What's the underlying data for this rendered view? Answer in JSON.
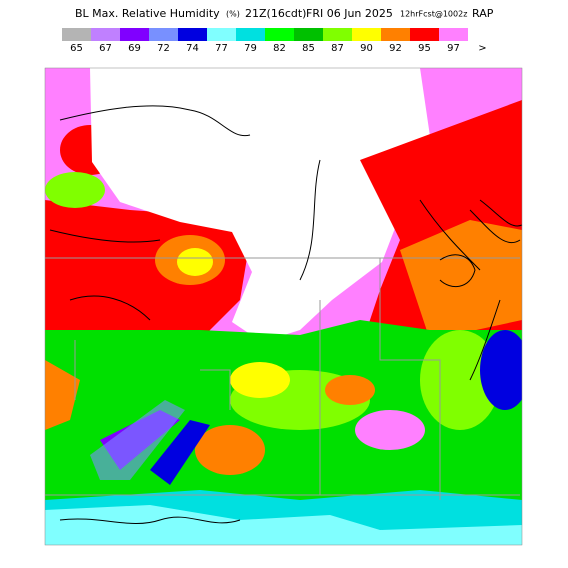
{
  "title": {
    "main": "BL Max. Relative Humidity",
    "units": "(%)",
    "valid": "21Z(16cdt)",
    "date": "FRI 06 Jun 2025",
    "forecast": "12hrFcst@1002z",
    "model": "RAP"
  },
  "colorbar": [
    {
      "label": "65",
      "color": "#b4b4b4"
    },
    {
      "label": "67",
      "color": "#c080ff"
    },
    {
      "label": "69",
      "color": "#8000ff"
    },
    {
      "label": "72",
      "color": "#7890ff"
    },
    {
      "label": "74",
      "color": "#0000e0"
    },
    {
      "label": "77",
      "color": "#80ffff"
    },
    {
      "label": "79",
      "color": "#00e0e0"
    },
    {
      "label": "82",
      "color": "#00ff00"
    },
    {
      "label": "85",
      "color": "#00c000"
    },
    {
      "label": "87",
      "color": "#80ff00"
    },
    {
      "label": "90",
      "color": "#ffff00"
    },
    {
      "label": "92",
      "color": "#ff8000"
    },
    {
      "label": "95",
      "color": "#ff0000"
    },
    {
      "label": "97",
      "color": "#ff80ff"
    },
    {
      "label": ">"
    }
  ]
}
